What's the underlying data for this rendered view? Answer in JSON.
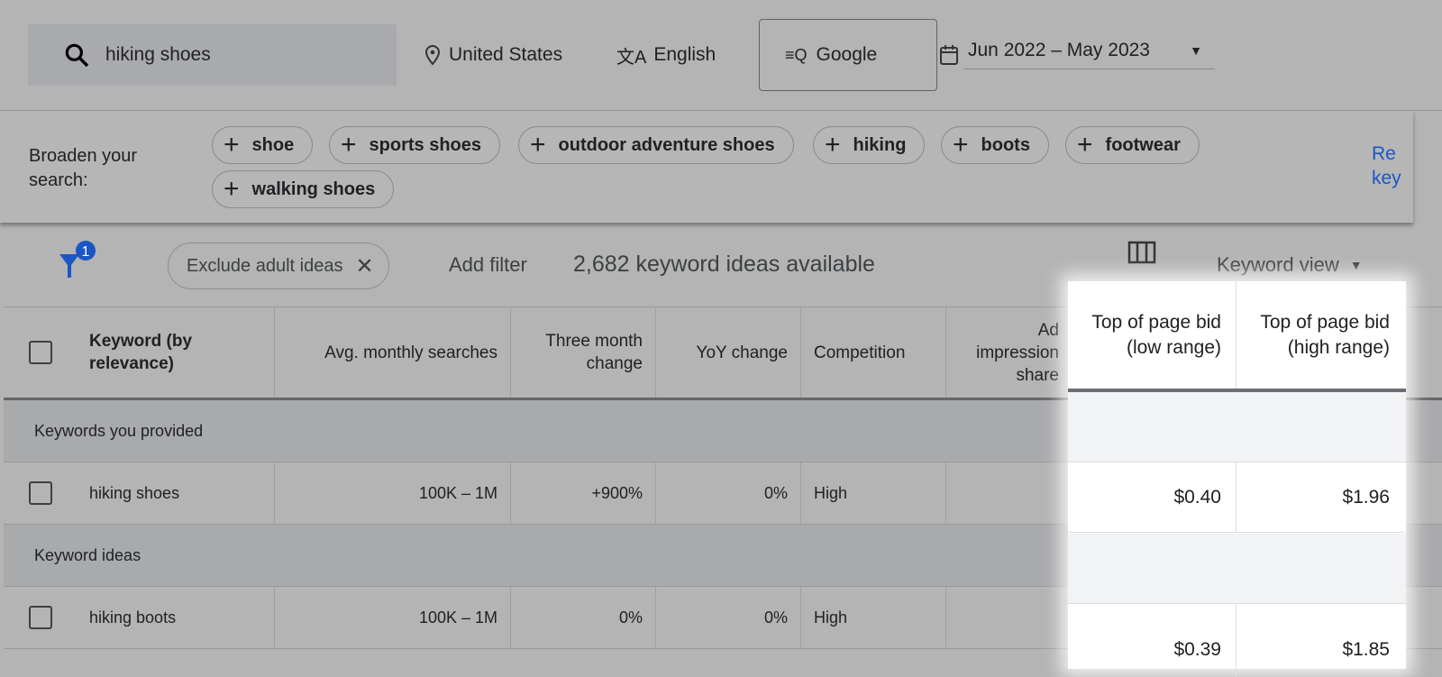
{
  "search": {
    "query": "hiking shoes",
    "location": "United States",
    "language": "English",
    "network": "Google",
    "date_range": "Jun 2022 – May 2023"
  },
  "broaden": {
    "label": "Broaden your search:",
    "chips": [
      "shoe",
      "sports shoes",
      "outdoor adventure shoes",
      "hiking",
      "boots",
      "footwear",
      "walking shoes"
    ],
    "refine_partial": "Re\nkey"
  },
  "toolbar": {
    "filter_badge": "1",
    "exclude_chip": "Exclude adult ideas",
    "add_filter": "Add filter",
    "count": "2,682 keyword ideas available",
    "view": "Keyword view"
  },
  "table": {
    "headers": [
      "Keyword (by relevance)",
      "Avg. monthly searches",
      "Three month change",
      "YoY change",
      "Competition",
      "Ad impression share",
      "Top of page bid (low range)",
      "Top of page bid (high range)"
    ],
    "groups": [
      "Keywords you provided",
      "Keyword ideas"
    ],
    "rows": [
      {
        "keyword": "hiking shoes",
        "avg": "100K – 1M",
        "three": "+900%",
        "yoy": "0%",
        "comp": "High",
        "low": "$0.40",
        "high": "$1.96"
      },
      {
        "keyword": "hiking boots",
        "avg": "100K – 1M",
        "three": "0%",
        "yoy": "0%",
        "comp": "High",
        "low": "$0.39",
        "high": "$1.85"
      }
    ]
  },
  "colors": {
    "accent": "#1a56c4",
    "overlay": "#b4b4b4"
  }
}
